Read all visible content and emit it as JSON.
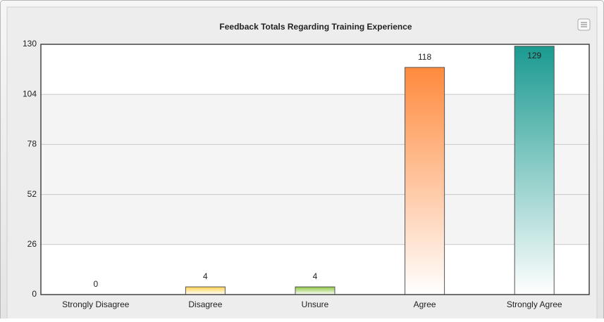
{
  "chart_data": {
    "type": "bar",
    "title": "Feedback Totals Regarding Training Experience",
    "categories": [
      "Strongly Disagree",
      "Disagree",
      "Unsure",
      "Agree",
      "Strongly Agree"
    ],
    "values": [
      0,
      4,
      4,
      118,
      129
    ],
    "colors": [
      "#e05050",
      "#ffd24d",
      "#8cc63f",
      "#ff8a3d",
      "#1a9a90"
    ],
    "ylim": [
      0,
      130
    ],
    "yticks": [
      0,
      26,
      52,
      78,
      104,
      130
    ],
    "grid": true
  }
}
